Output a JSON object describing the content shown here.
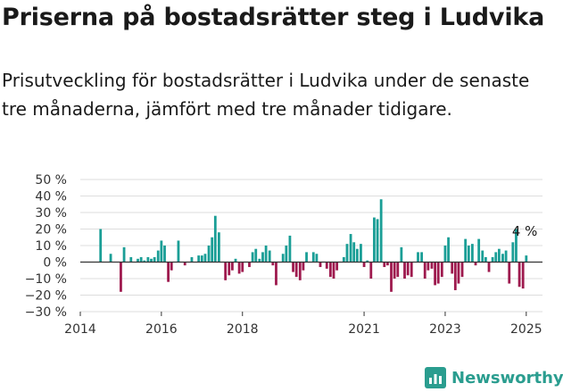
{
  "header": {
    "title": "Priserna på bostadsrätter steg i Ludvika",
    "subtitle": "Prisutveckling för bostadsrätter i Ludvika under de senaste tre månaderna, jämfört med tre månader tidigare."
  },
  "brand": {
    "name": "Newsworthy",
    "icon": "newsworthy-logo-icon"
  },
  "colors": {
    "positive": "#1a9e96",
    "negative": "#9e1a4e",
    "zero_line": "#333333",
    "grid": "#dddddd"
  },
  "chart_data": {
    "type": "bar",
    "y_ticks": [
      50,
      40,
      30,
      20,
      10,
      0,
      -10,
      -20,
      -30
    ],
    "y_ticks_labels": [
      "50 %",
      "40 %",
      "30 %",
      "20 %",
      "10 %",
      "0 %",
      "−10 %",
      "−20 %",
      "−30 %"
    ],
    "ylim": [
      -30,
      50
    ],
    "x_ticks": [
      2014,
      2016,
      2018,
      2021,
      2023,
      2025
    ],
    "x_ticks_labels": [
      "2014",
      "2016",
      "2018",
      "2021",
      "2023",
      "2025"
    ],
    "x_start": 2014.0,
    "x_end": 2025.4,
    "annotation": {
      "text": "4 %",
      "x": 2025.0,
      "y": 4
    },
    "series": [
      {
        "x": [
          2014.5,
          2014.75,
          2015.0,
          2015.08,
          2015.25,
          2015.33,
          2015.42,
          2015.5,
          2015.58,
          2015.67,
          2015.75,
          2015.83,
          2015.92,
          2016.0,
          2016.08,
          2016.17,
          2016.25,
          2016.42,
          2016.58,
          2016.75,
          2016.83,
          2016.92,
          2017.0,
          2017.08,
          2017.17,
          2017.25,
          2017.33,
          2017.42,
          2017.58,
          2017.67,
          2017.75,
          2017.83,
          2017.92,
          2018.0,
          2018.08,
          2018.17,
          2018.25,
          2018.33,
          2018.42,
          2018.5,
          2018.58,
          2018.67,
          2018.75,
          2018.83,
          2018.92,
          2019.0,
          2019.08,
          2019.17,
          2019.25,
          2019.33,
          2019.42,
          2019.5,
          2019.58,
          2019.67,
          2019.75,
          2019.83,
          2019.92,
          2020.0,
          2020.08,
          2020.17,
          2020.25,
          2020.33,
          2020.42,
          2020.5,
          2020.58,
          2020.67,
          2020.75,
          2020.83,
          2020.92,
          2021.0,
          2021.08,
          2021.17,
          2021.25,
          2021.33,
          2021.42,
          2021.5,
          2021.58,
          2021.67,
          2021.75,
          2021.83,
          2021.92,
          2022.0,
          2022.08,
          2022.17,
          2022.25,
          2022.33,
          2022.42,
          2022.5,
          2022.58,
          2022.67,
          2022.75,
          2022.83,
          2022.92,
          2023.0,
          2023.08,
          2023.17,
          2023.25,
          2023.33,
          2023.42,
          2023.5,
          2023.58,
          2023.67,
          2023.75,
          2023.83,
          2023.92,
          2024.0,
          2024.08,
          2024.17,
          2024.25,
          2024.33,
          2024.42,
          2024.5,
          2024.58,
          2024.67,
          2024.75,
          2024.83,
          2024.92,
          2025.0
        ],
        "values": [
          20,
          5,
          -18,
          9,
          3,
          0,
          2,
          3,
          1,
          3,
          2,
          3,
          7,
          13,
          10,
          -12,
          -5,
          13,
          -2,
          3,
          0,
          4,
          4,
          5,
          10,
          15,
          28,
          18,
          -11,
          -8,
          -5,
          2,
          -7,
          -6,
          0,
          -3,
          6,
          8,
          2,
          6,
          10,
          7,
          -2,
          -14,
          0,
          5,
          10,
          16,
          -6,
          -9,
          -11,
          -5,
          6,
          0,
          6,
          5,
          -3,
          0,
          -4,
          -9,
          -10,
          -5,
          0,
          3,
          11,
          17,
          12,
          8,
          11,
          -3,
          1,
          -10,
          27,
          26,
          38,
          -3,
          -2,
          -18,
          -10,
          -9,
          9,
          -10,
          -8,
          -9,
          0,
          6,
          6,
          -10,
          -5,
          -4,
          -14,
          -13,
          -9,
          10,
          15,
          -7,
          -17,
          -13,
          -9,
          14,
          10,
          11,
          -2,
          14,
          7,
          3,
          -6,
          3,
          6,
          8,
          5,
          7,
          -13,
          12,
          20,
          -15,
          -16,
          4
        ]
      }
    ]
  }
}
